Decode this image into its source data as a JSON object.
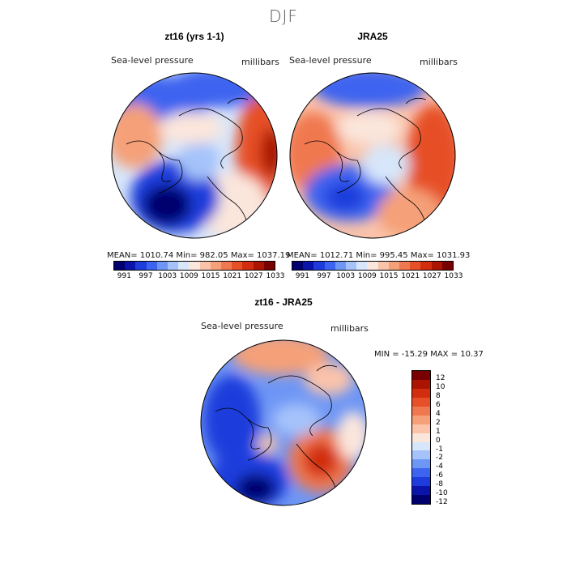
{
  "title": "DJF",
  "panel1": {
    "title": "zt16 (yrs 1-1)",
    "variable": "Sea-level pressure",
    "units": "millibars",
    "stats": "MEAN= 1010.74   Min= 982.05   Max= 1037.19"
  },
  "panel2": {
    "title": "JRA25",
    "variable": "Sea-level pressure",
    "units": "millibars",
    "stats": "MEAN= 1012.71   Min= 995.45   Max= 1031.93"
  },
  "panel3": {
    "title": "zt16 - JRA25",
    "variable": "Sea-level pressure",
    "units": "millibars",
    "stats": "MIN = -15.29  MAX =  10.37"
  },
  "colorbar_top": {
    "ticks": [
      "991",
      "997",
      "1003",
      "1009",
      "1015",
      "1021",
      "1027",
      "1033"
    ],
    "colors": [
      "#00006e",
      "#0a14a8",
      "#1e3cdc",
      "#3c64f0",
      "#6e96f5",
      "#a5c3fa",
      "#d7e6fa",
      "#fbe6dc",
      "#fac3aa",
      "#f5a078",
      "#f07850",
      "#e65028",
      "#d22d0f",
      "#aa1400",
      "#780000"
    ]
  },
  "colorbar_diff": {
    "ticks": [
      "12",
      "10",
      "8",
      "6",
      "4",
      "2",
      "1",
      "0",
      "-1",
      "-2",
      "-4",
      "-6",
      "-8",
      "-10",
      "-12"
    ],
    "colors": [
      "#780000",
      "#aa1400",
      "#d22d0f",
      "#e65028",
      "#f07850",
      "#f5a078",
      "#fac3aa",
      "#fbe6dc",
      "#d7e6fa",
      "#a5c3fa",
      "#6e96f5",
      "#3c64f0",
      "#1e3cdc",
      "#0a14a8",
      "#00006e"
    ]
  }
}
